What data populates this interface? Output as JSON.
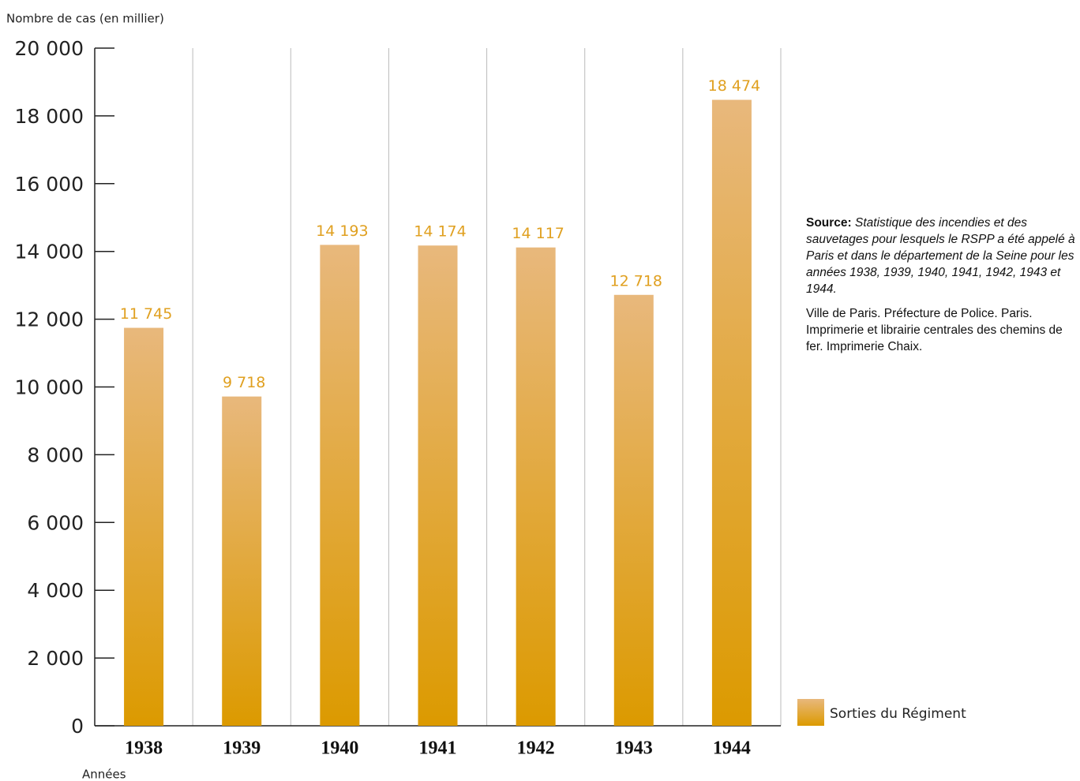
{
  "chart_data": {
    "type": "bar",
    "y_axis_label": "Nombre de cas (en millier)",
    "x_axis_label": "Années",
    "categories": [
      "1938",
      "1939",
      "1940",
      "1941",
      "1942",
      "1943",
      "1944"
    ],
    "series": [
      {
        "name": "Sorties du Régiment",
        "color": "#dc9a00",
        "values": [
          11745,
          9718,
          14193,
          14174,
          14117,
          12718,
          18474
        ],
        "value_labels": [
          "11 745",
          "9 718",
          "14 193",
          "14 174",
          "14 117",
          "12 718",
          "18 474"
        ]
      }
    ],
    "ylim": [
      0,
      20000
    ],
    "yticks": [
      0,
      {
        "value": 2000,
        "label": "2 000"
      },
      {
        "value": 4000,
        "label": "4 000"
      },
      {
        "value": 6000,
        "label": "6 000"
      },
      {
        "value": 8000,
        "label": "8 000"
      },
      {
        "value": 10000,
        "label": "10 000"
      },
      {
        "value": 12000,
        "label": "12 000"
      },
      {
        "value": 14000,
        "label": "14 000"
      },
      {
        "value": 16000,
        "label": "16 000"
      },
      {
        "value": 18000,
        "label": "18 000"
      },
      {
        "value": 20000,
        "label": "20 000"
      }
    ],
    "legend": "lower right",
    "source_label": "Source:",
    "source_text": "Statistique des incendies et des sauvetages pour lesquels le RSPP a été appelé à Paris et dans le département de la Seine pour les années 1938, 1939, 1940, 1941, 1942, 1943 et 1944.",
    "publisher": "Ville de Paris. Préfecture de Police. Paris. Imprimerie et librairie centrales des chemins de fer. Imprimerie Chaix."
  }
}
